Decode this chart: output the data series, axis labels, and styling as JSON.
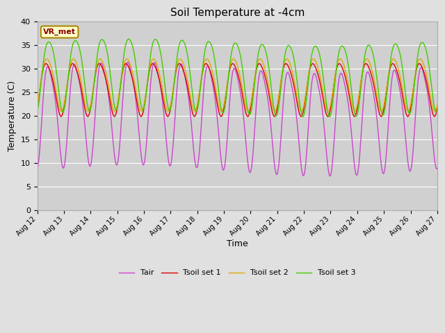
{
  "title": "Soil Temperature at -4cm",
  "xlabel": "Time",
  "ylabel": "Temperature (C)",
  "ylim": [
    0,
    40
  ],
  "yticks": [
    0,
    5,
    10,
    15,
    20,
    25,
    30,
    35,
    40
  ],
  "background_color": "#e0e0e0",
  "plot_bg_color": "#d0d0d0",
  "line_colors": {
    "Tair": "#cc44cc",
    "Tsoil set 1": "#dd0000",
    "Tsoil set 2": "#ddaa00",
    "Tsoil set 3": "#44cc00"
  },
  "legend_labels": [
    "Tair",
    "Tsoil set 1",
    "Tsoil set 2",
    "Tsoil set 3"
  ],
  "annotation_text": "VR_met",
  "annotation_box_color": "#ffffcc",
  "annotation_border_color": "#aa8800",
  "x_start_day": 12,
  "x_end_day": 27,
  "num_points": 600,
  "x_tick_days": [
    12,
    13,
    14,
    15,
    16,
    17,
    18,
    19,
    20,
    21,
    22,
    23,
    24,
    25,
    26,
    27
  ],
  "x_tick_labels": [
    "Aug 12",
    "Aug 13",
    "Aug 14",
    "Aug 15",
    "Aug 16",
    "Aug 17",
    "Aug 18",
    "Aug 19",
    "Aug 20",
    "Aug 21",
    "Aug 22",
    "Aug 23",
    "Aug 24",
    "Aug 25",
    "Aug 26",
    "Aug 27"
  ]
}
